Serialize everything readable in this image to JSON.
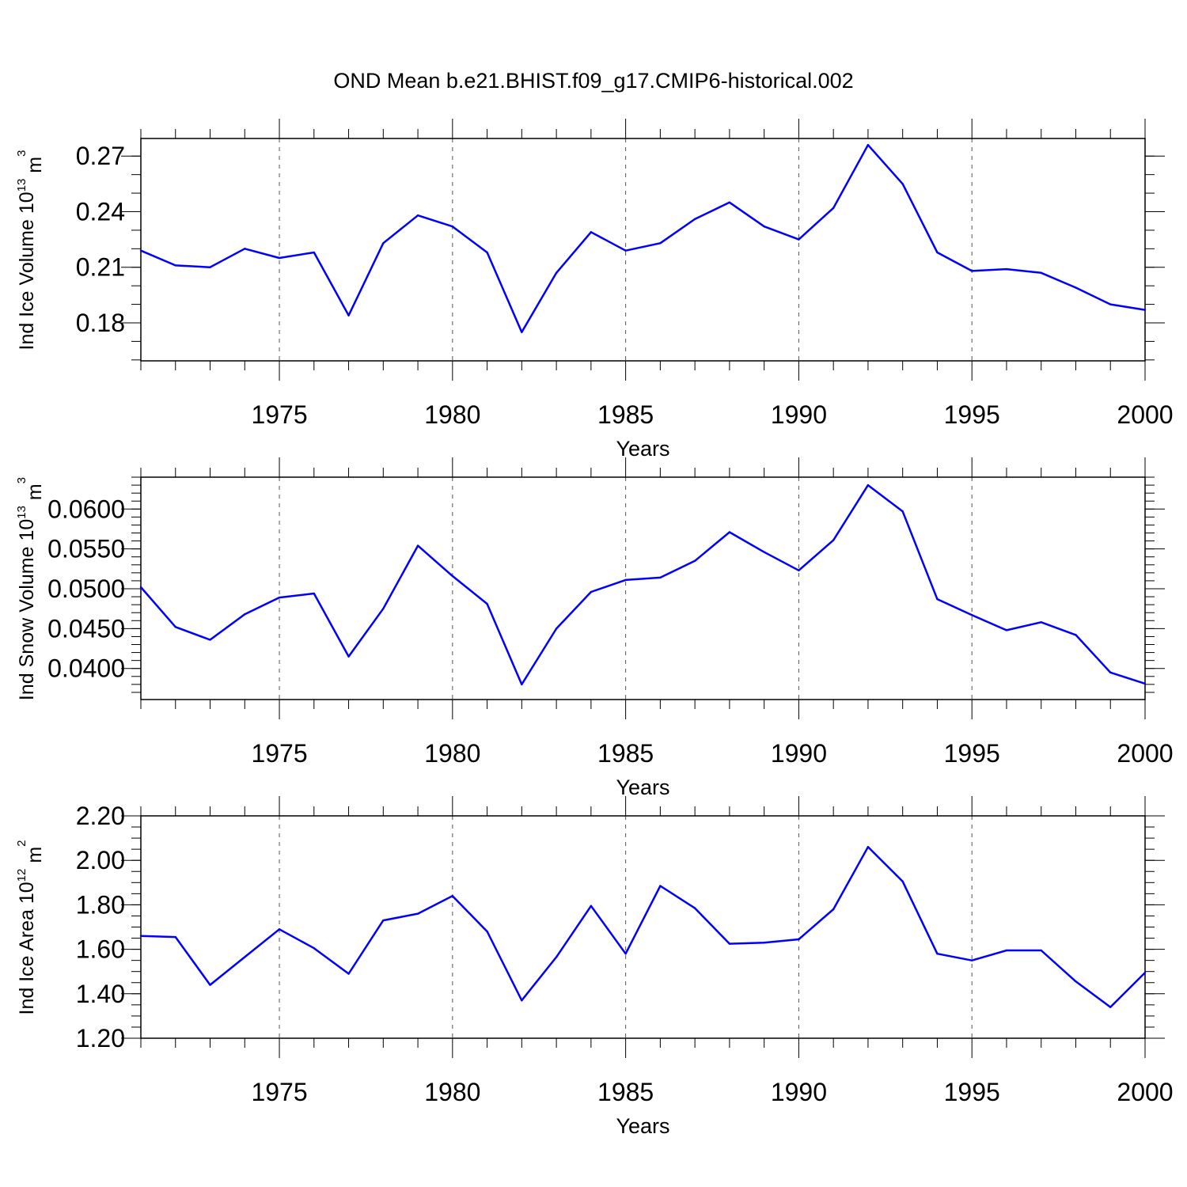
{
  "title": "OND Mean b.e21.BHIST.f09_g17.CMIP6-historical.002",
  "colors": {
    "line": "#0000ff",
    "axis": "#000000",
    "grid": "#555555"
  },
  "chart_data": [
    {
      "type": "line",
      "xlabel": "Years",
      "ylabel": {
        "text": "Ind Ice Volume 10",
        "exp": "13",
        "unit": " m",
        "unit_exp": "3"
      },
      "xlim": [
        1971,
        2000
      ],
      "ylim": [
        0.1595,
        0.2795
      ],
      "yticks": [
        0.18,
        0.21,
        0.24,
        0.27
      ],
      "ytick_labels": [
        "0.18",
        "0.21",
        "0.24",
        "0.27"
      ],
      "yminor_step": 0.01,
      "xticks": [
        1975,
        1980,
        1985,
        1990,
        1995,
        2000
      ],
      "grid": "vertical dashed at major x ticks",
      "x": [
        1971,
        1972,
        1973,
        1974,
        1975,
        1976,
        1977,
        1978,
        1979,
        1980,
        1981,
        1982,
        1983,
        1984,
        1985,
        1986,
        1987,
        1988,
        1989,
        1990,
        1991,
        1992,
        1993,
        1994,
        1995,
        1996,
        1997,
        1998,
        1999,
        2000
      ],
      "series": [
        {
          "values": [
            0.219,
            0.211,
            0.21,
            0.22,
            0.215,
            0.218,
            0.184,
            0.223,
            0.238,
            0.232,
            0.218,
            0.175,
            0.207,
            0.229,
            0.219,
            0.223,
            0.236,
            0.245,
            0.232,
            0.225,
            0.242,
            0.276,
            0.255,
            0.218,
            0.208,
            0.209,
            0.207,
            0.199,
            0.19,
            0.187
          ]
        }
      ]
    },
    {
      "type": "line",
      "xlabel": "Years",
      "ylabel": {
        "text": "Ind Snow Volume 10",
        "exp": "13",
        "unit": " m",
        "unit_exp": "3"
      },
      "xlim": [
        1971,
        2000
      ],
      "ylim": [
        0.0361,
        0.064
      ],
      "yticks": [
        0.04,
        0.045,
        0.05,
        0.055,
        0.06
      ],
      "ytick_labels": [
        "0.0400",
        "0.0450",
        "0.0500",
        "0.0550",
        "0.0600"
      ],
      "yminor_step": 0.001,
      "xticks": [
        1975,
        1980,
        1985,
        1990,
        1995,
        2000
      ],
      "grid": "vertical dashed at major x ticks",
      "x": [
        1971,
        1972,
        1973,
        1974,
        1975,
        1976,
        1977,
        1978,
        1979,
        1980,
        1981,
        1982,
        1983,
        1984,
        1985,
        1986,
        1987,
        1988,
        1989,
        1990,
        1991,
        1992,
        1993,
        1994,
        1995,
        1996,
        1997,
        1998,
        1999,
        2000
      ],
      "series": [
        {
          "values": [
            0.0502,
            0.0452,
            0.0436,
            0.0468,
            0.0489,
            0.0494,
            0.0415,
            0.0475,
            0.0554,
            0.0516,
            0.0481,
            0.038,
            0.045,
            0.0496,
            0.0511,
            0.0514,
            0.0535,
            0.0571,
            0.0546,
            0.0523,
            0.0561,
            0.063,
            0.0597,
            0.0487,
            0.0467,
            0.0448,
            0.0458,
            0.0442,
            0.0395,
            0.0381
          ]
        }
      ]
    },
    {
      "type": "line",
      "xlabel": "Years",
      "ylabel": {
        "text": "Ind Ice Area 10",
        "exp": "12",
        "unit": " m",
        "unit_exp": "2"
      },
      "xlim": [
        1971,
        2000
      ],
      "ylim": [
        1.2,
        2.2
      ],
      "yticks": [
        1.2,
        1.4,
        1.6,
        1.8,
        2.0,
        2.2
      ],
      "ytick_labels": [
        "1.20",
        "1.40",
        "1.60",
        "1.80",
        "2.00",
        "2.20"
      ],
      "yminor_step": 0.05,
      "xticks": [
        1975,
        1980,
        1985,
        1990,
        1995,
        2000
      ],
      "grid": "vertical dashed at major x ticks",
      "x": [
        1971,
        1972,
        1973,
        1974,
        1975,
        1976,
        1977,
        1978,
        1979,
        1980,
        1981,
        1982,
        1983,
        1984,
        1985,
        1986,
        1987,
        1988,
        1989,
        1990,
        1991,
        1992,
        1993,
        1994,
        1995,
        1996,
        1997,
        1998,
        1999,
        2000
      ],
      "series": [
        {
          "values": [
            1.66,
            1.655,
            1.44,
            1.565,
            1.69,
            1.605,
            1.49,
            1.73,
            1.76,
            1.84,
            1.68,
            1.37,
            1.565,
            1.795,
            1.58,
            1.885,
            1.785,
            1.625,
            1.63,
            1.645,
            1.78,
            2.06,
            1.905,
            1.58,
            1.55,
            1.595,
            1.595,
            1.455,
            1.34,
            1.495
          ]
        }
      ]
    }
  ]
}
